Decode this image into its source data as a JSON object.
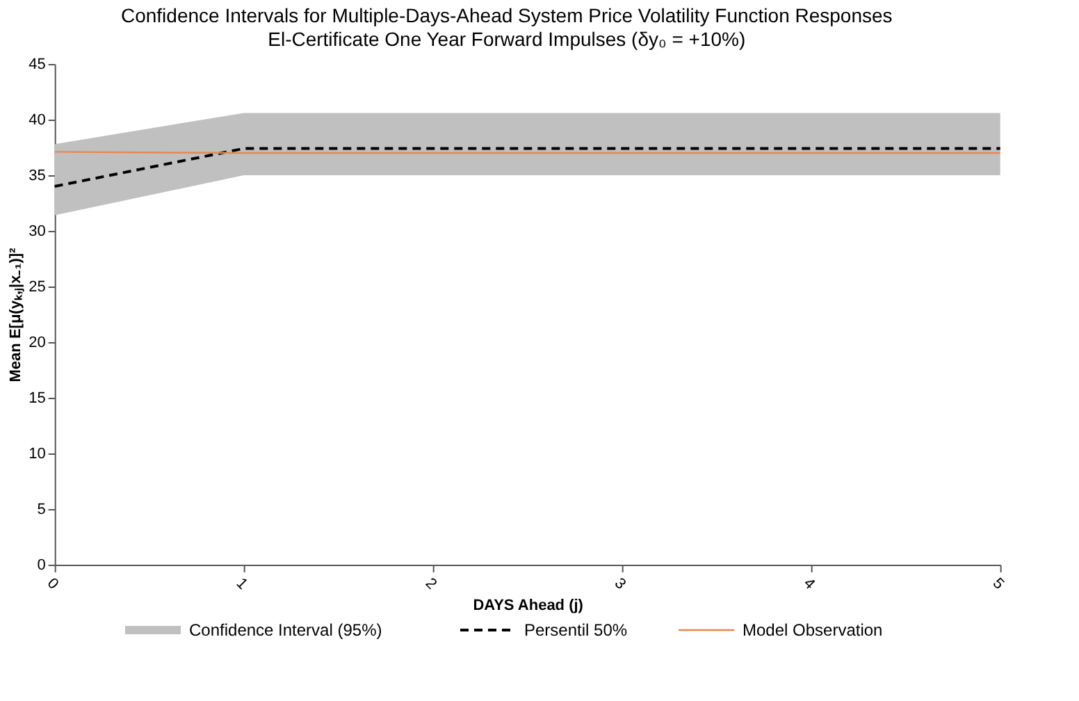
{
  "chart_data": {
    "type": "line",
    "title": "Confidence Intervals for Multiple-Days-Ahead System Price Volatility Function Responses",
    "subtitle": "El-Certificate One Year Forward Impulses (δy₀ = +10%)",
    "xlabel": "DAYS Ahead (j)",
    "ylabel": "Mean E[μ(yₖ,ⱼ|x₋₁)]²",
    "x": [
      0,
      1,
      2,
      3,
      4,
      5
    ],
    "xlim": [
      0,
      5
    ],
    "xticks": [
      0,
      1,
      2,
      3,
      4,
      5
    ],
    "ylim": [
      0,
      45
    ],
    "yticks": [
      0,
      5,
      10,
      15,
      20,
      25,
      30,
      35,
      40,
      45
    ],
    "grid": false,
    "legend": "bottom",
    "marker": "none",
    "series": [
      {
        "name": "Confidence Interval (95%)",
        "type": "area",
        "color": "#c0c0c0",
        "values": [
          null,
          null,
          null,
          null,
          null,
          null
        ],
        "lower": [
          31.4,
          35.0,
          35.0,
          35.0,
          35.0,
          35.0
        ],
        "upper": [
          37.8,
          40.6,
          40.6,
          40.6,
          40.6,
          40.6
        ]
      },
      {
        "name": "Persentil 50%",
        "color": "#000000",
        "line_style": "dashed",
        "values": [
          34.0,
          37.4,
          37.4,
          37.4,
          37.4,
          37.4
        ]
      },
      {
        "name": "Model Observation",
        "color": "#e8884c",
        "line_style": "solid",
        "values": [
          37.1,
          37.0,
          37.0,
          37.0,
          37.0,
          37.0
        ]
      }
    ]
  }
}
